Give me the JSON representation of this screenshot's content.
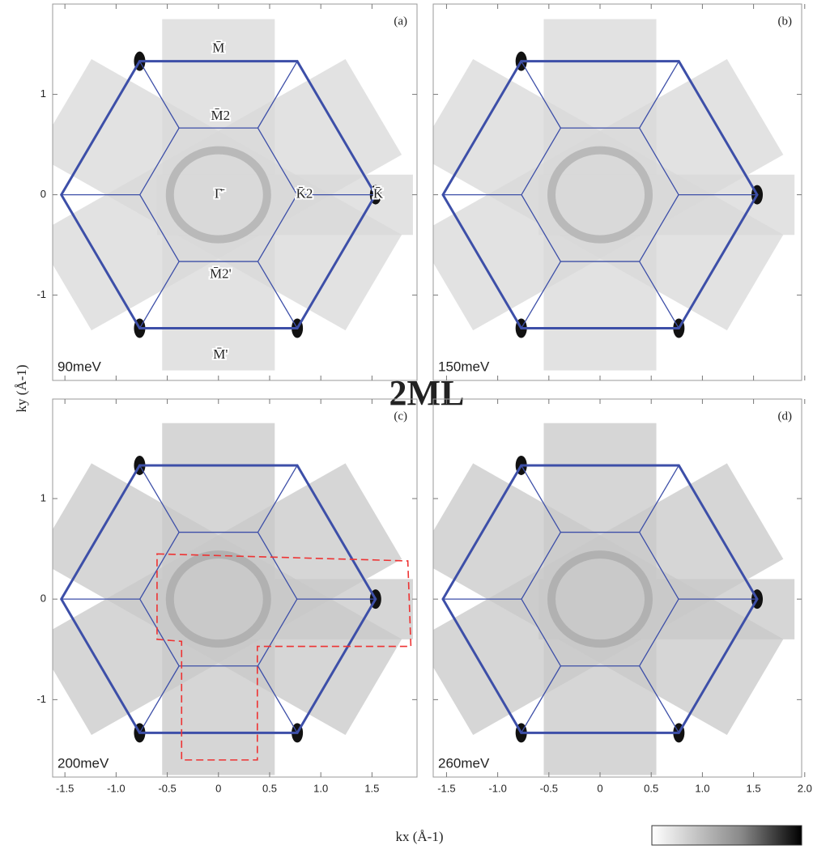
{
  "title": "2ML",
  "x_label": "kx (Å-1)",
  "y_label": "ky (Å-1)",
  "chart_data": [
    {
      "type": "map",
      "panel_label": "(a)",
      "energy_label": "90meV",
      "xlim": [
        -1.62,
        1.94
      ],
      "ylim": [
        -1.85,
        1.9
      ],
      "xticks": [
        -1.5,
        {
          "value": -1,
          "label": "-1.0"
        },
        -0.5,
        0,
        0.5,
        {
          "value": 1,
          "label": "1.0"
        },
        1.5
      ],
      "yticks": [
        -1,
        0,
        1
      ],
      "annotations": [
        "M̄",
        "M̄2",
        "Γ̄",
        "K̄2",
        "K̄",
        "M̄2'",
        "M̄'"
      ]
    },
    {
      "type": "map",
      "panel_label": "(b)",
      "energy_label": "150meV",
      "xlim": [
        -1.63,
        1.97
      ],
      "ylim": [
        -1.85,
        1.9
      ],
      "xticks": [
        -1.5,
        {
          "value": -1,
          "label": "-1.0"
        },
        -0.5,
        0,
        0.5,
        {
          "value": 1,
          "label": "1.0"
        },
        1.5,
        {
          "value": 2,
          "label": "2.0"
        }
      ],
      "yticks": [
        -1,
        0,
        1
      ]
    },
    {
      "type": "map",
      "panel_label": "(c)",
      "energy_label": "200meV",
      "xlim": [
        -1.62,
        1.94
      ],
      "ylim": [
        -1.77,
        1.99
      ],
      "xticks": [
        -1.5,
        {
          "value": -1,
          "label": "-1.0"
        },
        -0.5,
        0,
        0.5,
        {
          "value": 1,
          "label": "1.0"
        },
        1.5
      ],
      "yticks": [
        -1,
        0,
        1
      ]
    },
    {
      "type": "map",
      "panel_label": "(d)",
      "energy_label": "260meV",
      "xlim": [
        -1.63,
        1.97
      ],
      "ylim": [
        -1.77,
        1.99
      ],
      "xticks": [
        -1.5,
        {
          "value": -1,
          "label": "-1.0"
        },
        -0.5,
        0,
        0.5,
        {
          "value": 1,
          "label": "1.0"
        },
        1.5,
        {
          "value": 2,
          "label": "2.0"
        }
      ],
      "yticks": [
        -1,
        0,
        1
      ]
    }
  ]
}
